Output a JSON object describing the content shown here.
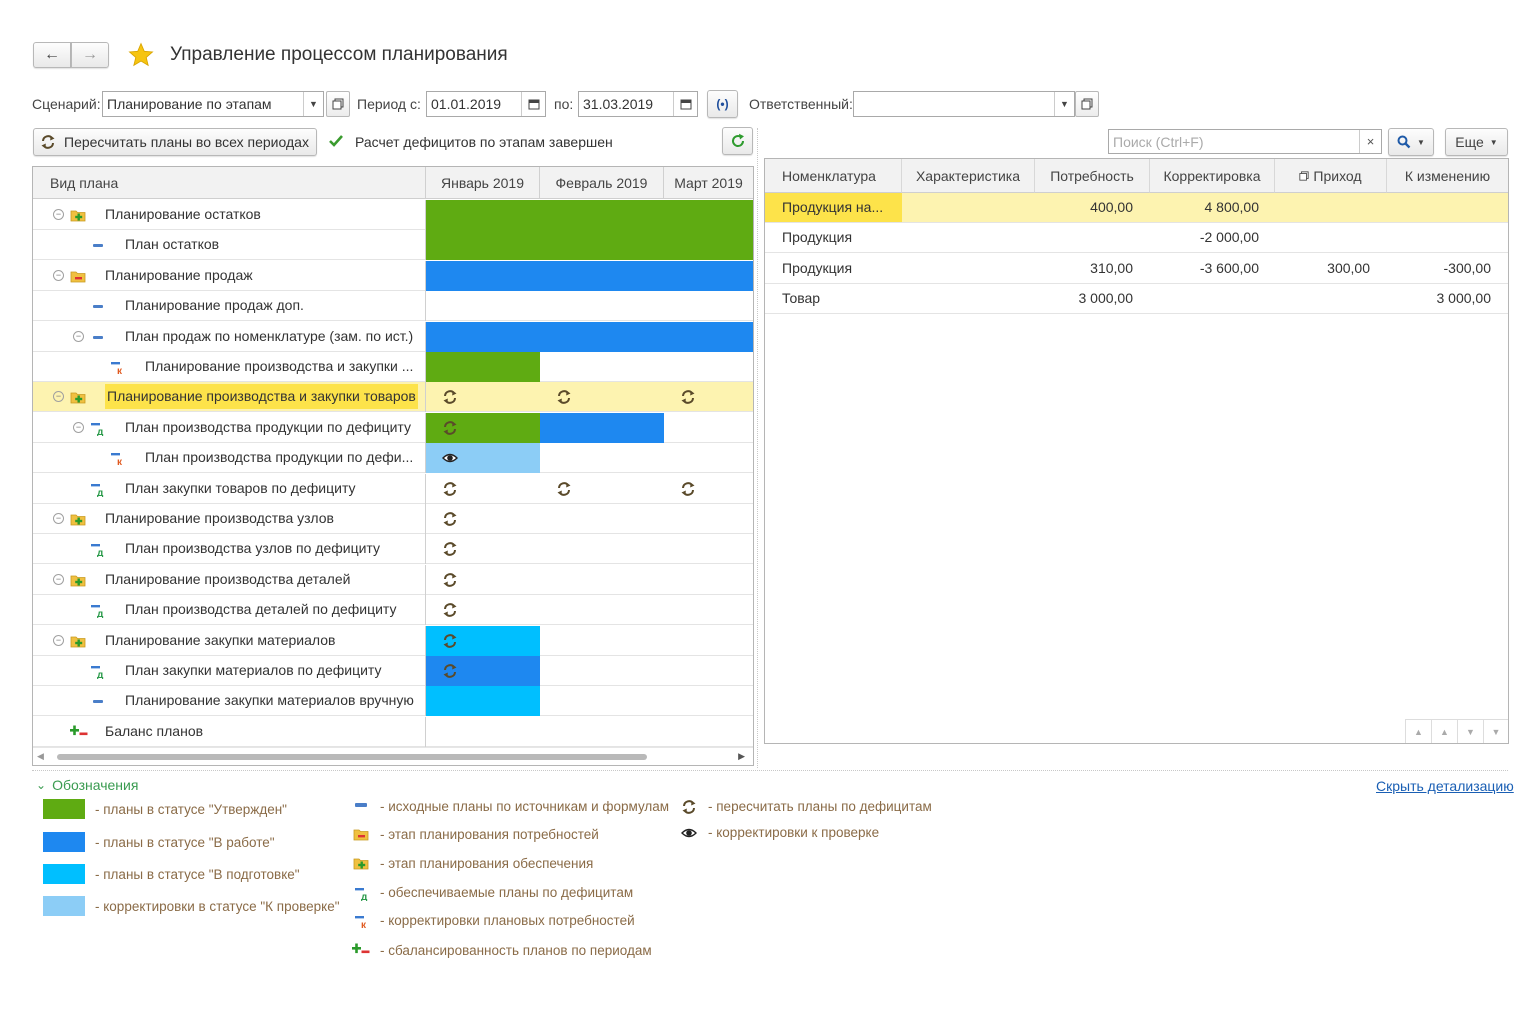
{
  "window": {
    "title": "Управление процессом планирования"
  },
  "toolbar": {
    "scenario_label": "Сценарий:",
    "scenario_value": "Планирование по этапам",
    "period_from_label": "Период с:",
    "period_from_value": "01.01.2019",
    "period_to_label": "по:",
    "period_to_value": "31.03.2019",
    "responsible_label": "Ответственный:",
    "responsible_value": ""
  },
  "actions": {
    "recalc_label": "Пересчитать планы во всех периодах",
    "status_text": "Расчет дефицитов по этапам завершен",
    "search_placeholder": "Поиск (Ctrl+F)",
    "more_label": "Еще"
  },
  "colors": {
    "approved": "#5fab12",
    "in_work": "#1e88f0",
    "in_prep": "#00bfff",
    "to_check": "#8ccdf6",
    "highlight": "#fdf3b0"
  },
  "left_grid": {
    "col_header": "Вид плана",
    "months": [
      "Январь 2019",
      "Февраль 2019",
      "Март 2019"
    ],
    "rows": [
      {
        "label": "Планирование остатков",
        "icon": "supply-stage-icon",
        "cells": [
          "approved",
          "approved",
          "approved"
        ]
      },
      {
        "label": "План остатков",
        "icon": "source-plan-icon",
        "cells": [
          "approved",
          "approved",
          "approved"
        ]
      },
      {
        "label": "Планирование продаж",
        "icon": "demand-stage-icon",
        "cells": [
          "in_work",
          "in_work",
          "in_work"
        ]
      },
      {
        "label": "Планирование продаж доп.",
        "icon": "source-plan-icon",
        "cells": [
          "",
          "",
          ""
        ]
      },
      {
        "label": "План продаж по номенклатуре (зам. по ист.)",
        "icon": "source-plan-icon",
        "cells": [
          "in_work",
          "in_work",
          "in_work"
        ]
      },
      {
        "label": "Планирование производства и закупки ...",
        "icon": "demand-correction-icon",
        "cells": [
          "approved",
          "",
          ""
        ]
      },
      {
        "label": "Планирование производства и закупки товаров",
        "icon": "supply-stage-icon",
        "cells": [
          "recalc",
          "recalc",
          "recalc"
        ]
      },
      {
        "label": "План производства продукции по дефициту",
        "icon": "deficit-plan-icon",
        "cells": [
          "approved_recalc",
          "in_work",
          ""
        ]
      },
      {
        "label": "План производства продукции по дефи...",
        "icon": "demand-correction-icon",
        "cells": [
          "to_check_eye",
          "",
          ""
        ]
      },
      {
        "label": "План закупки товаров по дефициту",
        "icon": "deficit-plan-icon",
        "cells": [
          "recalc",
          "recalc",
          "recalc"
        ]
      },
      {
        "label": "Планирование производства узлов",
        "icon": "supply-stage-icon",
        "cells": [
          "recalc",
          "",
          ""
        ]
      },
      {
        "label": "План производства узлов по дефициту",
        "icon": "deficit-plan-icon",
        "cells": [
          "recalc",
          "",
          ""
        ]
      },
      {
        "label": "Планирование производства деталей",
        "icon": "supply-stage-icon",
        "cells": [
          "recalc",
          "",
          ""
        ]
      },
      {
        "label": "План производства деталей по дефициту",
        "icon": "deficit-plan-icon",
        "cells": [
          "recalc",
          "",
          ""
        ]
      },
      {
        "label": "Планирование закупки материалов",
        "icon": "supply-stage-icon",
        "cells": [
          "in_prep_recalc",
          "",
          ""
        ]
      },
      {
        "label": "План закупки материалов по дефициту",
        "icon": "deficit-plan-icon",
        "cells": [
          "in_work_recalc",
          "",
          ""
        ]
      },
      {
        "label": "Планирование закупки материалов вручную",
        "icon": "source-plan-icon",
        "cells": [
          "in_prep",
          "",
          ""
        ]
      },
      {
        "label": "Баланс планов",
        "icon": "balance-icon",
        "cells": [
          "",
          "",
          ""
        ]
      }
    ]
  },
  "right_grid": {
    "headers": [
      "Номенклатура",
      "Характеристика",
      "Потребность",
      "Корректировка",
      "Приход",
      "К изменению"
    ],
    "rows": [
      {
        "nom": "Продукция на...",
        "char": "",
        "need": "400,00",
        "corr": "4 800,00",
        "income": "",
        "change": ""
      },
      {
        "nom": "Продукция",
        "char": "",
        "need": "",
        "corr": "-2 000,00",
        "income": "",
        "change": ""
      },
      {
        "nom": "Продукция",
        "char": "",
        "need": "310,00",
        "corr": "-3 600,00",
        "income": "300,00",
        "change": "-300,00"
      },
      {
        "nom": "Товар",
        "char": "",
        "need": "3 000,00",
        "corr": "",
        "income": "",
        "change": "3 000,00"
      }
    ]
  },
  "legend": {
    "title": "Обозначения",
    "hide_link": "Скрыть детализацию",
    "statuses": [
      "- планы в статусе \"Утвержден\"",
      "- планы в статусе \"В работе\"",
      "- планы в статусе \"В подготовке\"",
      "- корректировки в статусе \"К проверке\""
    ],
    "icons": [
      "- исходные планы по источникам и формулам",
      "- этап планирования потребностей",
      "- этап планирования обеспечения",
      "- обеспечиваемые планы по дефицитам",
      "- корректировки плановых потребностей",
      "- сбалансированность планов по периодам"
    ],
    "actions": [
      "- пересчитать планы по дефицитам",
      "- корректировки к проверке"
    ]
  }
}
